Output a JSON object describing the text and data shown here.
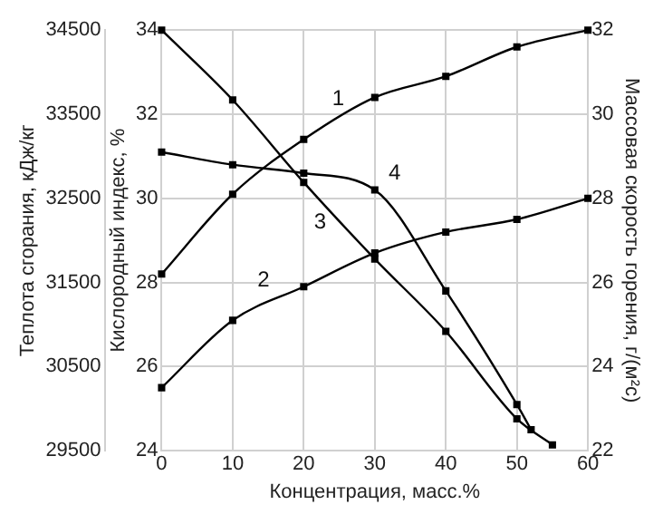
{
  "chart_data": {
    "type": "line",
    "xlabel": "Концентрация, масс.%",
    "ylabel": "Теплота сгорания, кДж/кг",
    "y3label": "Кислородный индекс, %",
    "y2label": "Массовая скорость горения, г/(м²с)",
    "x": [
      0,
      10,
      20,
      30,
      40,
      50,
      60
    ],
    "xlim": [
      0,
      60
    ],
    "xticks": [
      0,
      10,
      20,
      30,
      40,
      50,
      60
    ],
    "ylim": [
      29500,
      34500
    ],
    "yticks": [
      29500,
      30500,
      31500,
      32500,
      33500,
      34500
    ],
    "y3lim": [
      24,
      34
    ],
    "y3ticks": [
      24,
      26,
      28,
      30,
      32,
      34
    ],
    "y2lim": [
      22,
      32
    ],
    "y2ticks": [
      22,
      24,
      26,
      28,
      30,
      32
    ],
    "grid": true,
    "legend": false,
    "marker": "square",
    "line_style": "solid",
    "series": [
      {
        "name": "1",
        "color": "#000000",
        "axis": "y3",
        "values": [
          28.2,
          30.1,
          31.4,
          32.4,
          32.9,
          33.6,
          34.0
        ]
      },
      {
        "name": "2",
        "color": "#000000",
        "axis": "y3",
        "values": [
          25.5,
          27.1,
          27.9,
          28.7,
          29.2,
          29.5,
          30.0
        ]
      },
      {
        "name": "3",
        "color": "#000000",
        "x": [
          0,
          10,
          20,
          30,
          40,
          50,
          55
        ],
        "values": [
          34500,
          33670,
          32690,
          31780,
          30920,
          29880,
          29570
        ]
      },
      {
        "name": "4",
        "color": "#000000",
        "axis": "y2",
        "x": [
          0,
          10,
          20,
          30,
          40,
          50,
          52
        ],
        "values": [
          29.1,
          28.8,
          28.6,
          28.2,
          25.8,
          23.1,
          22.5
        ]
      }
    ]
  }
}
